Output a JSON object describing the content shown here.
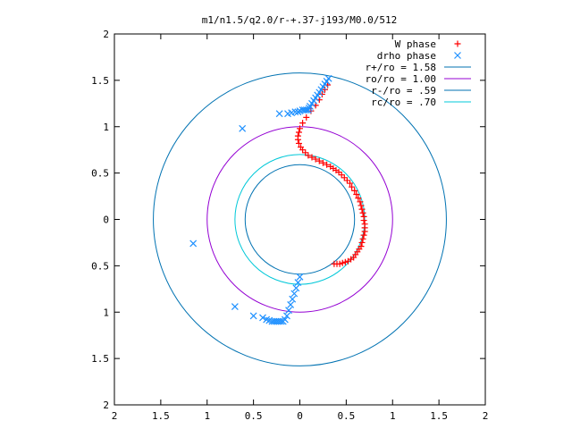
{
  "chart_data": {
    "type": "scatter",
    "title": "m1/n1.5/q2.0/r-+.37-j193/M0.0/512",
    "xlabel": "",
    "ylabel": "",
    "xlim": [
      -2,
      2
    ],
    "ylim": [
      -2,
      2
    ],
    "x_tick_values": [
      -2,
      -1.5,
      -1,
      -0.5,
      0,
      0.5,
      1,
      1.5,
      2
    ],
    "x_tick_labels": [
      "2",
      "1.5",
      "1",
      "0.5",
      "0",
      "0.5",
      "1",
      "1.5",
      "2"
    ],
    "y_tick_values": [
      2,
      1.5,
      1,
      0.5,
      0,
      -0.5,
      -1,
      -1.5,
      -2
    ],
    "y_tick_labels": [
      "2",
      "1.5",
      "1",
      "0.5",
      "0",
      "0.5",
      "1",
      "1.5",
      "2"
    ],
    "grid": false,
    "legend_position": "top-right",
    "circles": [
      {
        "name": "r+/ro = 1.58",
        "radius": 1.58,
        "color": "#0072b2"
      },
      {
        "name": "ro/ro = 1.00",
        "radius": 1.0,
        "color": "#9400d3"
      },
      {
        "name": "r-/ro = .59",
        "radius": 0.59,
        "color": "#0072b2"
      },
      {
        "name": "rc/ro = .70",
        "radius": 0.7,
        "color": "#00c8d8"
      }
    ],
    "series": [
      {
        "name": "W phase",
        "marker": "+",
        "color": "#ff0000",
        "x": [
          0.3,
          0.27,
          0.24,
          0.21,
          0.17,
          0.12,
          0.07,
          0.03,
          0.0,
          -0.01,
          -0.02,
          -0.02,
          -0.01,
          0.01,
          0.03,
          0.06,
          0.09,
          0.13,
          0.17,
          0.21,
          0.25,
          0.29,
          0.33,
          0.36,
          0.39,
          0.42,
          0.45,
          0.48,
          0.51,
          0.54,
          0.56,
          0.59,
          0.61,
          0.63,
          0.65,
          0.66,
          0.67,
          0.68,
          0.69,
          0.69,
          0.7,
          0.7,
          0.7,
          0.69,
          0.68,
          0.67,
          0.66,
          0.64,
          0.62,
          0.6,
          0.58,
          0.55,
          0.52,
          0.49,
          0.46,
          0.43,
          0.4,
          0.37
        ],
        "y": [
          1.45,
          1.4,
          1.35,
          1.29,
          1.23,
          1.17,
          1.1,
          1.04,
          0.98,
          0.94,
          0.9,
          0.86,
          0.82,
          0.78,
          0.75,
          0.72,
          0.69,
          0.67,
          0.65,
          0.63,
          0.61,
          0.59,
          0.57,
          0.55,
          0.53,
          0.51,
          0.48,
          0.45,
          0.42,
          0.39,
          0.35,
          0.31,
          0.27,
          0.23,
          0.19,
          0.15,
          0.11,
          0.07,
          0.03,
          -0.01,
          -0.05,
          -0.09,
          -0.13,
          -0.17,
          -0.21,
          -0.25,
          -0.29,
          -0.32,
          -0.35,
          -0.38,
          -0.41,
          -0.43,
          -0.45,
          -0.46,
          -0.47,
          -0.48,
          -0.48,
          -0.48
        ]
      },
      {
        "name": "drho phase",
        "marker": "x",
        "color": "#1e90ff",
        "x": [
          0.31,
          0.29,
          0.27,
          0.25,
          0.23,
          0.21,
          0.19,
          0.17,
          0.15,
          0.13,
          0.11,
          0.1,
          0.09,
          0.07,
          0.05,
          0.03,
          0.0,
          -0.02,
          -0.05,
          -0.09,
          -0.13,
          -0.22,
          -0.62,
          0.0,
          -0.02,
          -0.04,
          -0.06,
          -0.08,
          -0.1,
          -0.12,
          -0.14,
          -0.16,
          -0.18,
          -0.2,
          -0.22,
          -0.24,
          -0.26,
          -0.28,
          -0.3,
          -0.33,
          -0.36,
          -0.4,
          -0.5,
          -0.7,
          -1.15
        ],
        "y": [
          1.52,
          1.49,
          1.46,
          1.43,
          1.4,
          1.37,
          1.34,
          1.31,
          1.28,
          1.25,
          1.22,
          1.2,
          1.18,
          1.18,
          1.18,
          1.18,
          1.17,
          1.16,
          1.16,
          1.15,
          1.14,
          1.14,
          0.98,
          -0.62,
          -0.68,
          -0.74,
          -0.8,
          -0.86,
          -0.92,
          -0.98,
          -1.04,
          -1.08,
          -1.1,
          -1.1,
          -1.1,
          -1.1,
          -1.1,
          -1.1,
          -1.1,
          -1.09,
          -1.08,
          -1.06,
          -1.04,
          -0.94,
          -0.26
        ]
      }
    ]
  }
}
